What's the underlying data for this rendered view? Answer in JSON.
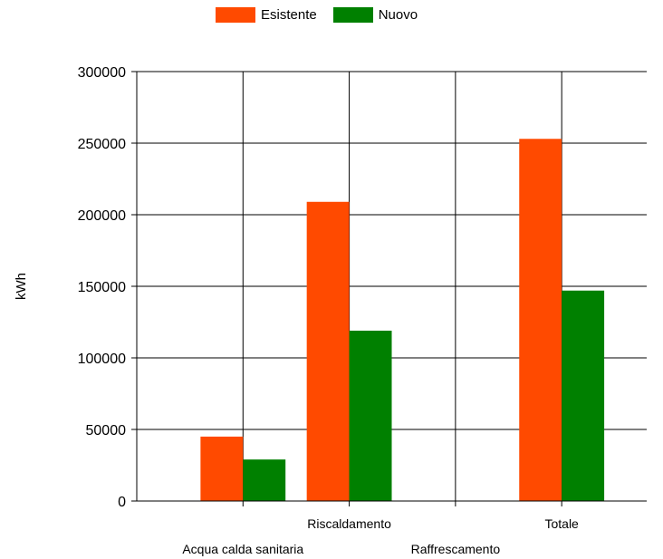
{
  "chart_data": {
    "type": "bar",
    "ylabel": "kWh",
    "xlabel": "",
    "ylim": [
      0,
      300000
    ],
    "yticks": [
      0,
      50000,
      100000,
      150000,
      200000,
      250000,
      300000
    ],
    "categories": [
      "Acqua calda sanitaria",
      "Riscaldamento",
      "Raffrescamento",
      "Totale"
    ],
    "series": [
      {
        "name": "Esistente",
        "color": "#ff4a00",
        "values": [
          45000,
          209000,
          0,
          253000
        ]
      },
      {
        "name": "Nuovo",
        "color": "#008000",
        "values": [
          29000,
          119000,
          0,
          147000
        ]
      }
    ],
    "grid": true,
    "legend_position": "top"
  }
}
